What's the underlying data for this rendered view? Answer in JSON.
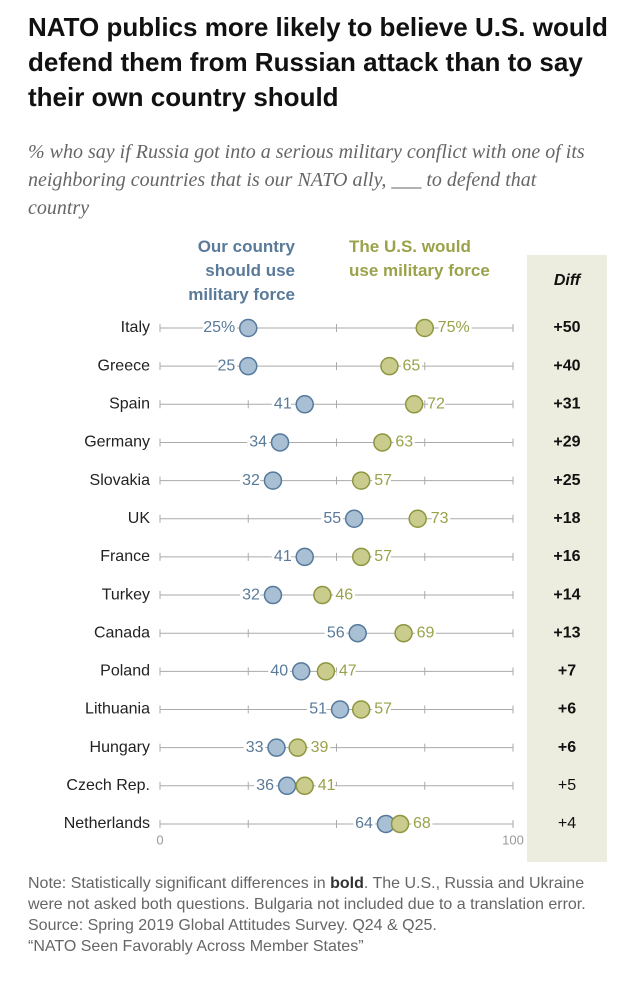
{
  "chart_data": {
    "type": "dot",
    "title": "NATO publics more likely to believe U.S. would defend them from Russian attack than to say their own country should",
    "subtitle": "% who say if Russia got into a serious military conflict with one of its neighboring countries that is our NATO ally, ___ to defend that country",
    "categories": [
      "Italy",
      "Greece",
      "Spain",
      "Germany",
      "Slovakia",
      "UK",
      "France",
      "Turkey",
      "Canada",
      "Poland",
      "Lithuania",
      "Hungary",
      "Czech Rep.",
      "Netherlands"
    ],
    "series": [
      {
        "name": "Our country should use military force",
        "color": "#a9bfd4",
        "stroke": "#557a9c",
        "label_color": "#5a7a99",
        "values": [
          25,
          25,
          41,
          34,
          32,
          55,
          41,
          32,
          56,
          40,
          51,
          33,
          36,
          64
        ],
        "value_labels": [
          "25%",
          "25",
          "41",
          "34",
          "32",
          "55",
          "41",
          "32",
          "56",
          "40",
          "51",
          "33",
          "36",
          "64"
        ]
      },
      {
        "name": "The U.S. would use military force",
        "color": "#c9cc8c",
        "stroke": "#8e9640",
        "label_color": "#9aa24a",
        "values": [
          75,
          65,
          72,
          63,
          57,
          73,
          57,
          46,
          69,
          47,
          57,
          39,
          41,
          68
        ],
        "value_labels": [
          "75%",
          "65",
          "72",
          "63",
          "57",
          "73",
          "57",
          "46",
          "69",
          "47",
          "57",
          "39",
          "41",
          "68"
        ]
      }
    ],
    "diff": {
      "title": "Diff",
      "values": [
        50,
        40,
        31,
        29,
        25,
        18,
        16,
        14,
        13,
        7,
        6,
        6,
        5,
        4
      ],
      "value_labels": [
        "+50",
        "+40",
        "+31",
        "+29",
        "+25",
        "+18",
        "+16",
        "+14",
        "+13",
        "+7",
        "+6",
        "+6",
        "+5",
        "+4"
      ],
      "bold": [
        true,
        true,
        true,
        true,
        true,
        true,
        true,
        true,
        true,
        true,
        true,
        true,
        false,
        false
      ]
    },
    "xlim": [
      0,
      100
    ],
    "xticks": [
      0,
      100
    ],
    "minor_xticks": [
      25,
      50,
      75
    ],
    "note": [
      "Note: Statistically significant differences in ",
      "bold",
      ". The U.S., Russia and Ukraine were not asked both questions. Bulgaria not included due to a translation error."
    ],
    "source": [
      "Source: Spring 2019 Global Attitudes Survey. Q24 & Q25.",
      "“NATO Seen Favorably Across Member States”"
    ]
  }
}
